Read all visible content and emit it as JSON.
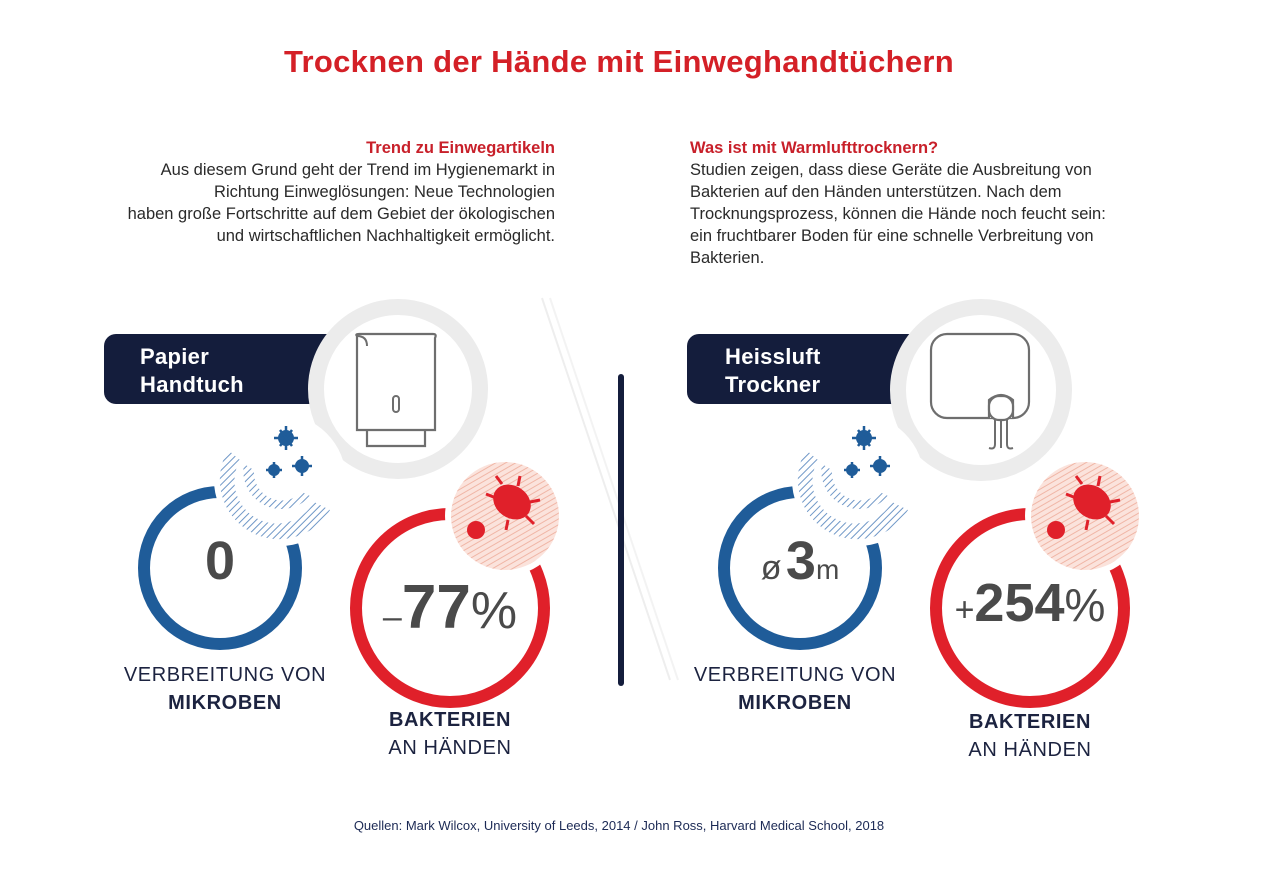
{
  "title": "Trocknen der Hände mit Einweghandtüchern",
  "left_section": {
    "heading": "Trend zu Einwegartikeln",
    "lines": [
      "Aus diesem Grund geht der Trend im Hygienemarkt in",
      "Richtung Einweglösungen: Neue Technologien",
      "haben große Fortschritte auf dem Gebiet der ökologischen",
      "und wirtschaftlichen Nachhaltigkeit ermöglicht."
    ]
  },
  "right_section": {
    "heading": "Was ist mit Warmlufttrocknern?",
    "lines": [
      "Studien zeigen, dass diese Geräte die Ausbreitung von",
      "Bakterien auf den Händen unterstützen. Nach dem",
      "Trocknungsprozess, können die Hände noch feucht sein:",
      "ein fruchtbarer Boden für eine schnelle Verbreitung von",
      "Bakterien."
    ]
  },
  "paper": {
    "label_line1": "Papier",
    "label_line2": "Handtuch",
    "microbes_value": "0",
    "microbes_caption_line1": "VERBREITUNG VON",
    "microbes_caption_line2": "MIKROBEN",
    "bacteria_sign": "–",
    "bacteria_number": "77",
    "bacteria_unit": "%",
    "bacteria_caption_line1": "BAKTERIEN",
    "bacteria_caption_line2": "AN HÄNDEN"
  },
  "dryer": {
    "label_line1": "Heissluft",
    "label_line2": "Trockner",
    "microbes_prefix": "ø",
    "microbes_number": "3",
    "microbes_unit": "m",
    "microbes_caption_line1": "VERBREITUNG VON",
    "microbes_caption_line2": "MIKROBEN",
    "bacteria_sign": "+",
    "bacteria_number": "254",
    "bacteria_unit": "%",
    "bacteria_caption_line1": "BAKTERIEN",
    "bacteria_caption_line2": "AN HÄNDEN"
  },
  "source": "Quellen: Mark Wilcox, University of Leeds, 2014 / John Ross, Harvard Medical School, 2018",
  "colors": {
    "title_red": "#d42027",
    "navy": "#141d3c",
    "blue": "#1f5c99",
    "red": "#e0202a",
    "light_red": "#f4c5b8",
    "grey_ring": "#ececec"
  },
  "icons": [
    "paper-towel-dispenser-icon",
    "hand-dryer-icon",
    "microbes-icon",
    "bacteria-icon"
  ]
}
